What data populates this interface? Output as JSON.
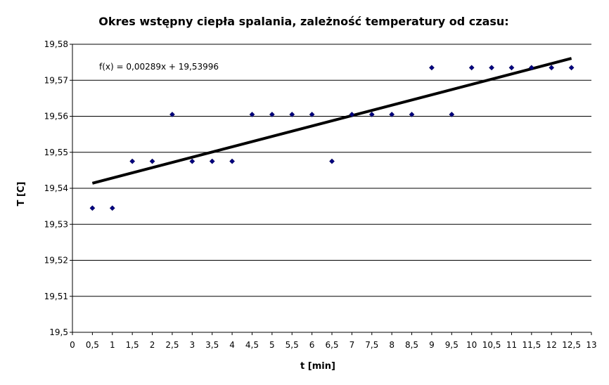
{
  "chart_data": {
    "type": "scatter",
    "title": "Okres wstępny ciepła spalania, zależność temperatury od czasu:",
    "xlabel": "t [min]",
    "ylabel": "T [C]",
    "xlim": [
      0,
      13
    ],
    "ylim": [
      19.5,
      19.58
    ],
    "x_ticks": [
      "0",
      "0,5",
      "1",
      "1,5",
      "2",
      "2,5",
      "3",
      "3,5",
      "4",
      "4,5",
      "5",
      "5,5",
      "6",
      "6,5",
      "7",
      "7,5",
      "8",
      "8,5",
      "9",
      "9,5",
      "10",
      "10,5",
      "11",
      "11,5",
      "12",
      "12,5",
      "13"
    ],
    "y_ticks": [
      "19,5",
      "19,51",
      "19,52",
      "19,53",
      "19,54",
      "19,55",
      "19,56",
      "19,57",
      "19,58"
    ],
    "grid": "horizontal",
    "series": [
      {
        "x": [
          0.5,
          1,
          1.5,
          2,
          2.5,
          3,
          3.5,
          4,
          4.5,
          5,
          5.5,
          6,
          6.5,
          7,
          7.5,
          8,
          8.5,
          9,
          9.5,
          10,
          10.5,
          11,
          11.5,
          12,
          12.5
        ],
        "y": [
          19.5345,
          19.5345,
          19.5475,
          19.5475,
          19.5605,
          19.5475,
          19.5475,
          19.5475,
          19.5605,
          19.5605,
          19.5605,
          19.5605,
          19.5475,
          19.5605,
          19.5605,
          19.5605,
          19.5605,
          19.5735,
          19.5605,
          19.5735,
          19.5735,
          19.5735,
          19.5735,
          19.5735,
          19.5735
        ],
        "color": "#000080"
      }
    ],
    "trendline": {
      "slope": 0.00289,
      "intercept": 19.53996,
      "x_range": [
        0.5,
        12.5
      ],
      "label": "f(x) = 0,00289x + 19,53996",
      "color": "#000000"
    }
  }
}
